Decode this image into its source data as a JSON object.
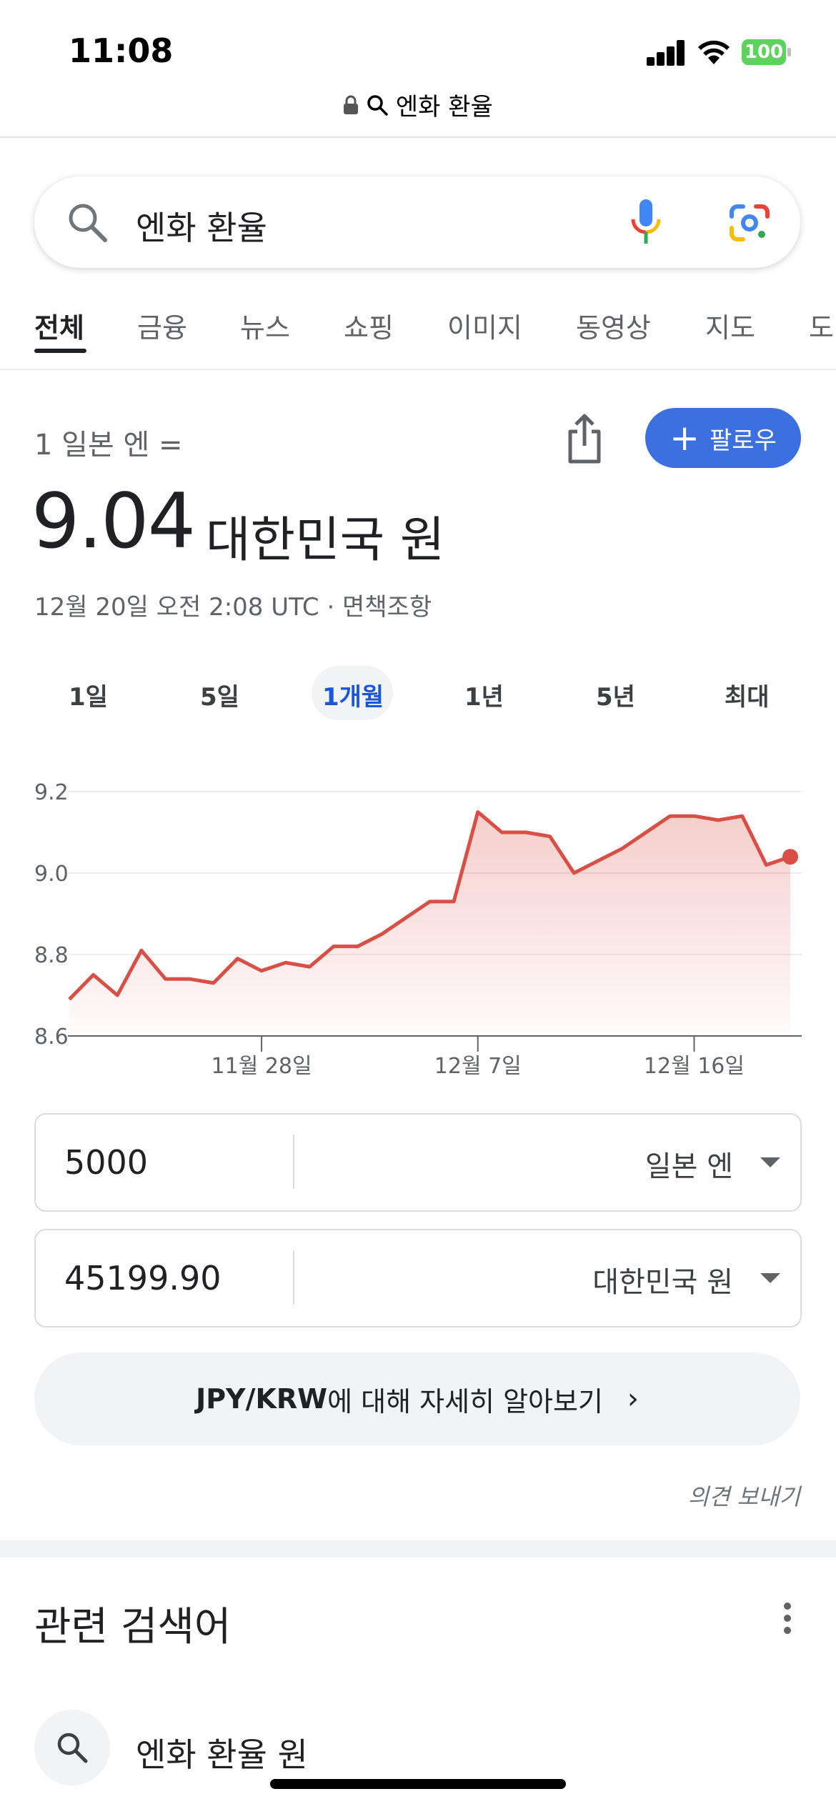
{
  "status_bar": {
    "time": "11:08",
    "battery": "100"
  },
  "browser": {
    "url_text": "엔화 환율"
  },
  "search": {
    "query": "엔화 환율"
  },
  "tabs": [
    {
      "label": "전체",
      "active": true
    },
    {
      "label": "금융"
    },
    {
      "label": "뉴스"
    },
    {
      "label": "쇼핑"
    },
    {
      "label": "이미지"
    },
    {
      "label": "동영상"
    },
    {
      "label": "지도"
    },
    {
      "label": "도"
    }
  ],
  "finance": {
    "rate_label": "1 일본 엔 =",
    "rate_value": "9.04",
    "rate_unit": "대한민국 원",
    "timestamp": "12월 20일 오전 2:08 UTC · 면책조항",
    "follow_label": "팔로우",
    "ranges": [
      "1일",
      "5일",
      "1개월",
      "1년",
      "5년",
      "최대"
    ],
    "active_range": "1개월"
  },
  "chart_data": {
    "type": "area",
    "line_color": "#d94f45",
    "ylim": [
      8.6,
      9.2
    ],
    "yticks": [
      "9.2",
      "9.0",
      "8.8",
      "8.6"
    ],
    "xtick_labels": [
      "11월 28일",
      "12월 7일",
      "12월 16일"
    ],
    "values": [
      8.69,
      8.75,
      8.7,
      8.81,
      8.74,
      8.74,
      8.73,
      8.79,
      8.76,
      8.78,
      8.77,
      8.82,
      8.82,
      8.85,
      8.89,
      8.93,
      8.93,
      9.15,
      9.1,
      9.1,
      9.09,
      9.0,
      9.03,
      9.06,
      9.1,
      9.14,
      9.14,
      9.13,
      9.14,
      9.02,
      9.04
    ]
  },
  "converter": {
    "from_amount": "5000",
    "from_currency": "일본 엔",
    "to_amount": "45199.90",
    "to_currency": "대한민국 원"
  },
  "learn_more": {
    "bold": "JPY/KRW",
    "rest": "에 대해 자세히 알아보기"
  },
  "feedback": "의견 보내기",
  "related": {
    "title": "관련 검색어",
    "items": [
      "엔화 환율 원"
    ]
  }
}
